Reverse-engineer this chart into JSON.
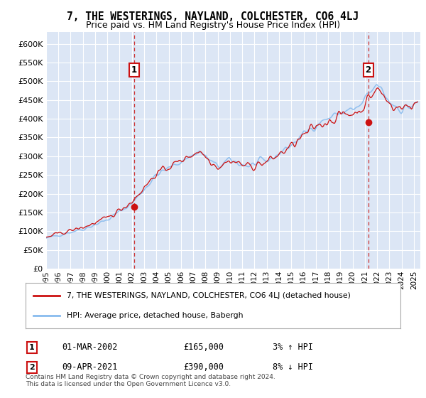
{
  "title": "7, THE WESTERINGS, NAYLAND, COLCHESTER, CO6 4LJ",
  "subtitle": "Price paid vs. HM Land Registry's House Price Index (HPI)",
  "ylabel_ticks": [
    0,
    50000,
    100000,
    150000,
    200000,
    250000,
    300000,
    350000,
    400000,
    450000,
    500000,
    550000,
    600000
  ],
  "ylim": [
    0,
    632000
  ],
  "xlim_start": 1995.0,
  "xlim_end": 2025.5,
  "plot_bg_color": "#dce6f5",
  "grid_color": "#ffffff",
  "line_color_red": "#cc1111",
  "line_color_blue": "#88bbee",
  "marker1_x": 2002.17,
  "marker1_y": 165000,
  "marker1_label": "1",
  "marker1_date": "01-MAR-2002",
  "marker1_price": "£165,000",
  "marker1_pct": "3% ↑ HPI",
  "marker2_x": 2021.27,
  "marker2_y": 390000,
  "marker2_label": "2",
  "marker2_date": "09-APR-2021",
  "marker2_price": "£390,000",
  "marker2_pct": "8% ↓ HPI",
  "legend_line1": "7, THE WESTERINGS, NAYLAND, COLCHESTER, CO6 4LJ (detached house)",
  "legend_line2": "HPI: Average price, detached house, Babergh",
  "footer1": "Contains HM Land Registry data © Crown copyright and database right 2024.",
  "footer2": "This data is licensed under the Open Government Licence v3.0."
}
